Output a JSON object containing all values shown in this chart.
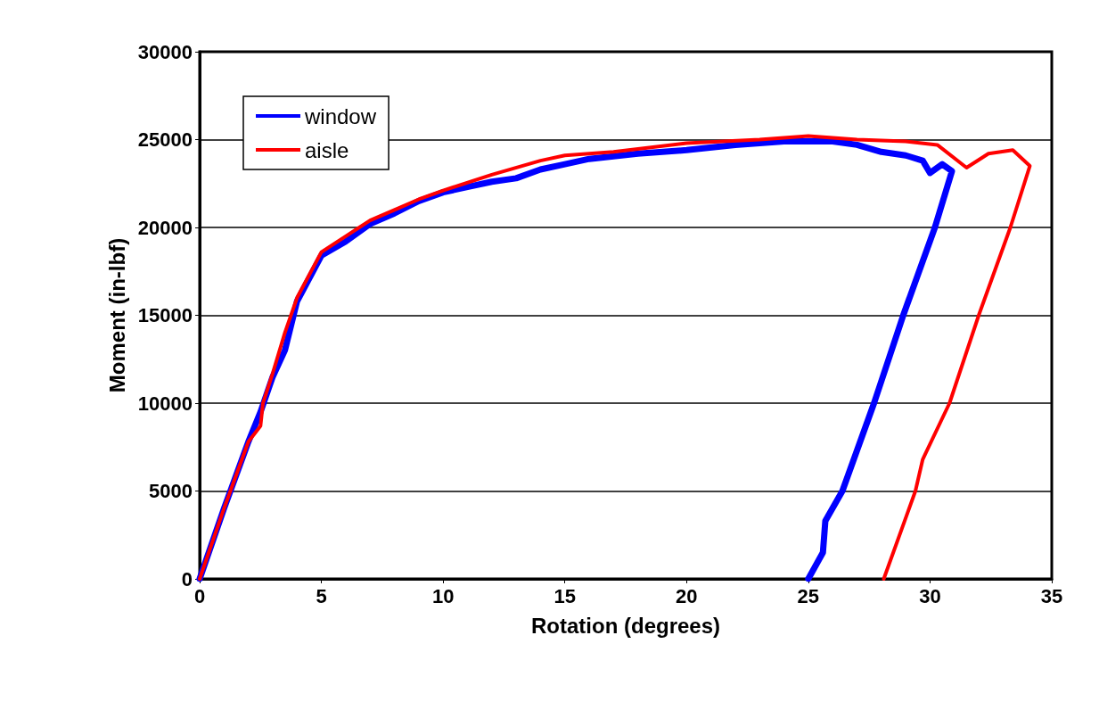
{
  "chart_data": {
    "type": "line",
    "xlabel": "Rotation (degrees)",
    "ylabel": "Moment (in-lbf)",
    "xlim": [
      0,
      35
    ],
    "ylim": [
      0,
      30000
    ],
    "xticks": [
      0,
      5,
      10,
      15,
      20,
      25,
      30,
      35
    ],
    "yticks": [
      0,
      5000,
      10000,
      15000,
      20000,
      25000,
      30000
    ],
    "grid": "y",
    "legend": "top left",
    "marker": "none",
    "line_style": "solid",
    "series": [
      {
        "name": "window",
        "color": "#0000ff",
        "x": [
          0,
          1,
          2,
          2.5,
          3,
          3.5,
          4,
          5,
          6,
          7,
          8,
          9,
          10,
          11,
          12,
          13,
          14,
          15,
          16,
          18,
          20,
          22,
          24,
          26,
          27,
          28,
          29,
          29.7,
          30.0,
          30.5,
          30.9,
          30.2,
          28.9,
          27.7,
          26.4,
          25.7,
          25.6,
          25.0
        ],
        "values": [
          0,
          4000,
          7800,
          9500,
          11500,
          13000,
          15800,
          18400,
          19200,
          20200,
          20800,
          21500,
          22000,
          22300,
          22600,
          22800,
          23300,
          23600,
          23900,
          24200,
          24400,
          24700,
          24900,
          24900,
          24700,
          24300,
          24100,
          23800,
          23100,
          23600,
          23200,
          20000,
          15000,
          10000,
          5000,
          3300,
          1500,
          0
        ]
      },
      {
        "name": "aisle",
        "color": "#ff0000",
        "x": [
          0,
          1,
          2,
          2.5,
          2.6,
          3,
          3.5,
          4,
          5,
          6,
          7,
          8,
          9,
          10,
          12,
          14,
          15,
          17,
          20,
          23,
          25,
          27,
          29,
          30.3,
          31.5,
          32.4,
          33.4,
          34.1,
          33.3,
          32,
          30.8,
          29.7,
          29.4,
          28.1
        ],
        "values": [
          0,
          4000,
          7800,
          8700,
          10000,
          11700,
          14000,
          16000,
          18600,
          19500,
          20400,
          21000,
          21600,
          22100,
          23000,
          23800,
          24100,
          24300,
          24800,
          25000,
          25200,
          25000,
          24900,
          24700,
          23400,
          24200,
          24400,
          23500,
          20000,
          15000,
          10000,
          6800,
          5000,
          0
        ]
      }
    ]
  }
}
